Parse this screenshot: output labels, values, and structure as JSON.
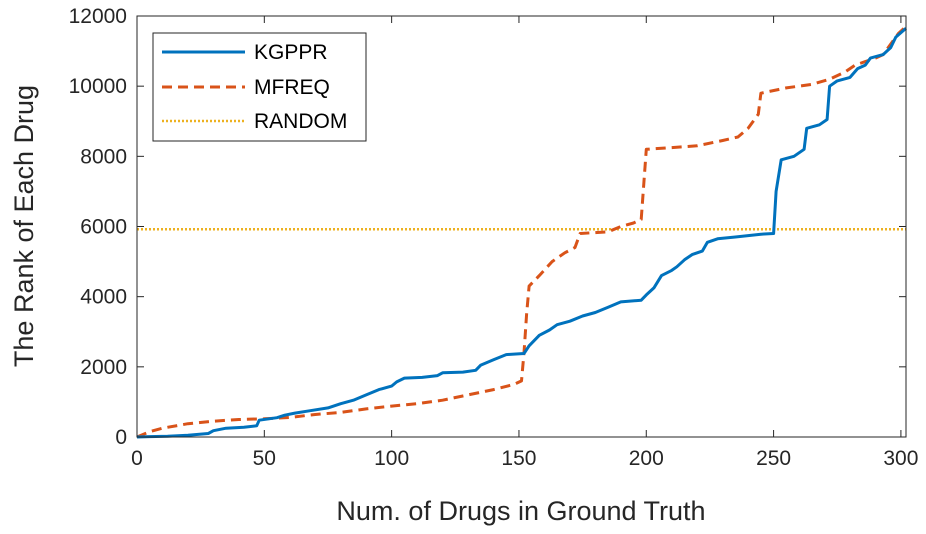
{
  "chart_data": {
    "type": "line",
    "title": "",
    "xlabel": "Num. of Drugs in Ground Truth",
    "ylabel": "The Rank of Each Drug",
    "xlim": [
      0,
      302
    ],
    "ylim": [
      0,
      12000
    ],
    "xticks": [
      0,
      50,
      100,
      150,
      200,
      250,
      300
    ],
    "yticks": [
      0,
      2000,
      4000,
      6000,
      8000,
      10000,
      12000
    ],
    "xtick_labels": [
      "0",
      "50",
      "100",
      "150",
      "200",
      "250",
      "300"
    ],
    "ytick_labels": [
      "0",
      "2000",
      "4000",
      "6000",
      "8000",
      "10000",
      "12000"
    ],
    "grid": false,
    "legend_position": "top-left",
    "series": [
      {
        "name": "KGPPR",
        "color": "#0072BD",
        "dash": "solid",
        "points": [
          [
            0,
            0
          ],
          [
            5,
            10
          ],
          [
            12,
            20
          ],
          [
            20,
            50
          ],
          [
            28,
            100
          ],
          [
            30,
            180
          ],
          [
            35,
            250
          ],
          [
            42,
            280
          ],
          [
            47,
            320
          ],
          [
            48,
            480
          ],
          [
            55,
            550
          ],
          [
            58,
            620
          ],
          [
            62,
            680
          ],
          [
            68,
            750
          ],
          [
            75,
            830
          ],
          [
            80,
            950
          ],
          [
            85,
            1050
          ],
          [
            90,
            1200
          ],
          [
            95,
            1350
          ],
          [
            100,
            1450
          ],
          [
            102,
            1570
          ],
          [
            105,
            1680
          ],
          [
            112,
            1700
          ],
          [
            118,
            1750
          ],
          [
            120,
            1830
          ],
          [
            128,
            1850
          ],
          [
            133,
            1900
          ],
          [
            135,
            2050
          ],
          [
            140,
            2200
          ],
          [
            145,
            2350
          ],
          [
            152,
            2380
          ],
          [
            154,
            2600
          ],
          [
            158,
            2900
          ],
          [
            162,
            3050
          ],
          [
            165,
            3200
          ],
          [
            170,
            3300
          ],
          [
            175,
            3450
          ],
          [
            180,
            3550
          ],
          [
            185,
            3700
          ],
          [
            190,
            3850
          ],
          [
            198,
            3900
          ],
          [
            200,
            4050
          ],
          [
            203,
            4250
          ],
          [
            206,
            4600
          ],
          [
            210,
            4750
          ],
          [
            212,
            4850
          ],
          [
            215,
            5050
          ],
          [
            218,
            5200
          ],
          [
            222,
            5300
          ],
          [
            224,
            5550
          ],
          [
            228,
            5650
          ],
          [
            235,
            5700
          ],
          [
            245,
            5780
          ],
          [
            250,
            5800
          ],
          [
            251,
            7000
          ],
          [
            253,
            7900
          ],
          [
            258,
            8000
          ],
          [
            262,
            8200
          ],
          [
            263,
            8800
          ],
          [
            268,
            8900
          ],
          [
            271,
            9050
          ],
          [
            272,
            10000
          ],
          [
            275,
            10150
          ],
          [
            280,
            10250
          ],
          [
            283,
            10500
          ],
          [
            286,
            10600
          ],
          [
            288,
            10800
          ],
          [
            293,
            10900
          ],
          [
            296,
            11100
          ],
          [
            298,
            11400
          ],
          [
            302,
            11650
          ]
        ]
      },
      {
        "name": "MFREQ",
        "color": "#D95319",
        "dash": "dashed",
        "points": [
          [
            0,
            0
          ],
          [
            5,
            150
          ],
          [
            10,
            250
          ],
          [
            20,
            380
          ],
          [
            30,
            450
          ],
          [
            40,
            500
          ],
          [
            50,
            520
          ],
          [
            60,
            560
          ],
          [
            70,
            640
          ],
          [
            80,
            700
          ],
          [
            90,
            800
          ],
          [
            100,
            880
          ],
          [
            110,
            950
          ],
          [
            120,
            1050
          ],
          [
            130,
            1200
          ],
          [
            140,
            1350
          ],
          [
            148,
            1500
          ],
          [
            151,
            1600
          ],
          [
            152,
            2400
          ],
          [
            153,
            3500
          ],
          [
            154,
            4300
          ],
          [
            158,
            4600
          ],
          [
            163,
            5000
          ],
          [
            168,
            5250
          ],
          [
            172,
            5400
          ],
          [
            174,
            5800
          ],
          [
            185,
            5850
          ],
          [
            190,
            6000
          ],
          [
            195,
            6100
          ],
          [
            198,
            6200
          ],
          [
            200,
            8200
          ],
          [
            210,
            8250
          ],
          [
            220,
            8300
          ],
          [
            230,
            8450
          ],
          [
            236,
            8550
          ],
          [
            240,
            8800
          ],
          [
            244,
            9200
          ],
          [
            245,
            9800
          ],
          [
            255,
            9950
          ],
          [
            265,
            10050
          ],
          [
            272,
            10200
          ],
          [
            278,
            10400
          ],
          [
            282,
            10600
          ],
          [
            286,
            10700
          ],
          [
            290,
            10800
          ],
          [
            293,
            10900
          ],
          [
            296,
            11200
          ],
          [
            299,
            11500
          ],
          [
            302,
            11700
          ]
        ]
      },
      {
        "name": "RANDOM",
        "color": "#EDB120",
        "dash": "dotted",
        "points": [
          [
            0,
            5920
          ],
          [
            302,
            5920
          ]
        ]
      }
    ]
  }
}
